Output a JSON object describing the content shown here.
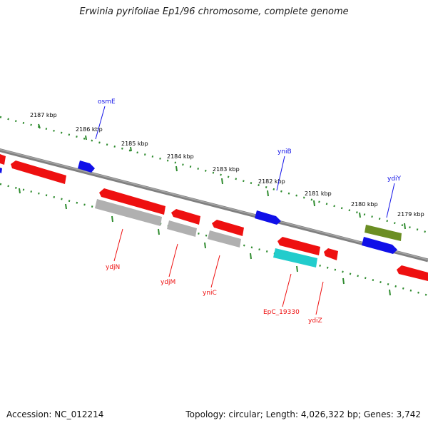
{
  "header": {
    "title": "Erwinia pyrifoliae Ep1/96 chromosome, complete genome"
  },
  "footer": {
    "accession": "Accession: NC_012214",
    "topology": "Topology: circular; Length: 4,026,322 bp; Genes: 3,742"
  },
  "colors": {
    "forward_gene": "#1010e8",
    "reverse_gene": "#ee1010",
    "pseudo_gene": "#b0b0b0",
    "rna_gene": "#22cccc",
    "other_gene": "#6b8e23",
    "ruler": "#2e8b2e",
    "backbone": "#808080"
  },
  "ruler": {
    "ticks": [
      "2187 kbp",
      "2186 kbp",
      "2185 kbp",
      "2184 kbp",
      "2183 kbp",
      "2182 kbp",
      "2181 kbp",
      "2180 kbp",
      "2179 kbp"
    ]
  },
  "gene_labels": {
    "forward": [
      "osmE",
      "yniB",
      "ydiY"
    ],
    "reverse": [
      "ydjN",
      "ydjM",
      "yniC",
      "EpC_19330",
      "ydiZ"
    ]
  }
}
